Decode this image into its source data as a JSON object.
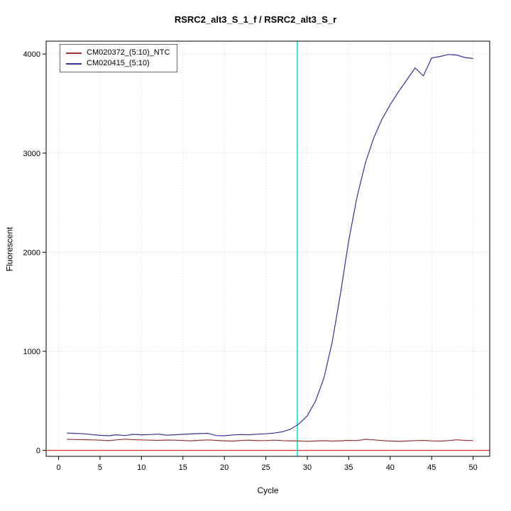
{
  "chart_data": {
    "type": "line",
    "title": "RSRC2_alt3_S_1_f / RSRC2_alt3_S_r",
    "xlabel": "Cycle",
    "ylabel": "Fluorescent",
    "xlim": [
      -1.5,
      52
    ],
    "ylim": [
      -60,
      4130
    ],
    "x_ticks": [
      0,
      5,
      10,
      15,
      20,
      25,
      30,
      35,
      40,
      45,
      50
    ],
    "y_ticks": [
      0,
      1000,
      2000,
      3000,
      4000
    ],
    "grid": "dotted",
    "grid_color": "#c8c8c8",
    "legend_position": "top-left",
    "x": [
      1,
      2,
      3,
      4,
      5,
      6,
      7,
      8,
      9,
      10,
      11,
      12,
      13,
      14,
      15,
      16,
      17,
      18,
      19,
      20,
      21,
      22,
      23,
      24,
      25,
      26,
      27,
      28,
      29,
      30,
      31,
      32,
      33,
      34,
      35,
      36,
      37,
      38,
      39,
      40,
      41,
      42,
      43,
      44,
      45,
      46,
      47,
      48,
      49,
      50
    ],
    "series": [
      {
        "name": "CM020372_(5:10)_NTC",
        "color": "#993333",
        "values": [
          112,
          110,
          108,
          106,
          103,
          98,
          106,
          113,
          108,
          106,
          103,
          101,
          105,
          103,
          100,
          97,
          102,
          106,
          101,
          97,
          94,
          100,
          104,
          98,
          100,
          103,
          99,
          97,
          95,
          92,
          95,
          98,
          94,
          97,
          101,
          99,
          112,
          106,
          100,
          95,
          91,
          95,
          99,
          101,
          96,
          94,
          99,
          107,
          101,
          99
        ]
      },
      {
        "name": "CM020415_(5:10)",
        "color": "#333399",
        "values": [
          175,
          172,
          168,
          160,
          152,
          148,
          158,
          150,
          162,
          158,
          160,
          164,
          154,
          158,
          162,
          166,
          170,
          172,
          150,
          148,
          156,
          160,
          158,
          164,
          168,
          175,
          188,
          215,
          268,
          350,
          500,
          730,
          1090,
          1580,
          2120,
          2560,
          2900,
          3150,
          3340,
          3490,
          3620,
          3740,
          3860,
          3780,
          3960,
          3975,
          3995,
          3990,
          3965,
          3955
        ]
      }
    ],
    "threshold_line": {
      "y": 0,
      "color": "#e60000"
    },
    "ct_line": {
      "x": 28.8,
      "color": "#00e0e0"
    }
  }
}
